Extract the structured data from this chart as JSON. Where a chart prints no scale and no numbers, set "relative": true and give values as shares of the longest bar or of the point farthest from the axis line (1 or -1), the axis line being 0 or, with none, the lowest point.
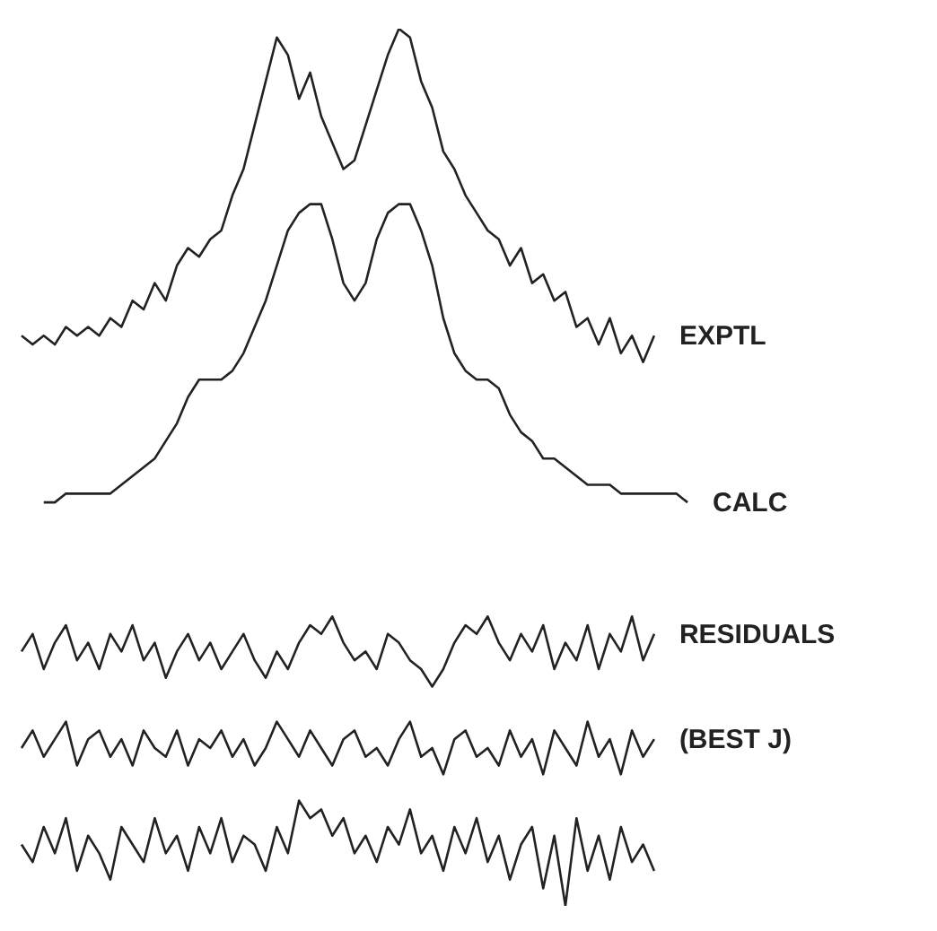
{
  "chart_data": {
    "type": "line",
    "relative": true,
    "grid": false,
    "legend": false,
    "marker": "none",
    "line_style": "solid",
    "tick_labels": false,
    "categories": [
      null,
      null,
      null,
      null,
      null,
      null,
      null,
      null,
      null,
      null,
      null,
      null,
      null,
      null,
      null,
      null,
      null,
      null,
      null,
      null,
      null,
      null,
      null,
      null,
      null,
      null,
      null,
      null,
      null,
      null,
      null,
      null,
      null,
      null,
      null,
      null,
      null,
      null,
      null,
      null,
      null,
      null,
      null,
      null,
      null,
      null,
      null,
      null,
      null,
      null,
      null,
      null,
      null,
      null,
      null,
      null,
      null,
      null,
      null,
      null,
      null
    ],
    "series": [
      {
        "name": "EXPTL",
        "color": "#222222",
        "values": [
          0.65,
          0.64,
          0.65,
          0.64,
          0.66,
          0.65,
          0.66,
          0.65,
          0.67,
          0.66,
          0.69,
          0.68,
          0.71,
          0.69,
          0.73,
          0.75,
          0.74,
          0.76,
          0.77,
          0.81,
          0.84,
          0.89,
          0.94,
          0.99,
          0.97,
          0.92,
          0.95,
          0.9,
          0.87,
          0.84,
          0.85,
          0.89,
          0.93,
          0.97,
          1.0,
          0.99,
          0.94,
          0.91,
          0.86,
          0.84,
          0.81,
          0.79,
          0.77,
          0.76,
          0.73,
          0.75,
          0.71,
          0.72,
          0.69,
          0.7,
          0.66,
          0.67,
          0.64,
          0.67,
          0.63,
          0.65,
          0.62,
          0.65,
          null,
          null,
          null
        ]
      },
      {
        "name": "CALC",
        "color": "#222222",
        "values": [
          null,
          null,
          0.46,
          0.46,
          0.47,
          0.47,
          0.47,
          0.47,
          0.47,
          0.48,
          0.49,
          0.5,
          0.51,
          0.53,
          0.55,
          0.58,
          0.6,
          0.6,
          0.6,
          0.61,
          0.63,
          0.66,
          0.69,
          0.73,
          0.77,
          0.79,
          0.8,
          0.8,
          0.76,
          0.71,
          0.69,
          0.71,
          0.76,
          0.79,
          0.8,
          0.8,
          0.77,
          0.73,
          0.67,
          0.63,
          0.61,
          0.6,
          0.6,
          0.59,
          0.56,
          0.54,
          0.53,
          0.51,
          0.51,
          0.5,
          0.49,
          0.48,
          0.48,
          0.48,
          0.47,
          0.47,
          0.47,
          0.47,
          0.47,
          0.47,
          0.46
        ]
      },
      {
        "name": "RESIDUALS",
        "color": "#222222",
        "values": [
          0.29,
          0.31,
          0.27,
          0.3,
          0.32,
          0.28,
          0.3,
          0.27,
          0.31,
          0.29,
          0.32,
          0.28,
          0.3,
          0.26,
          0.29,
          0.31,
          0.28,
          0.3,
          0.27,
          0.29,
          0.31,
          0.28,
          0.26,
          0.29,
          0.27,
          0.3,
          0.32,
          0.31,
          0.33,
          0.3,
          0.28,
          0.29,
          0.27,
          0.31,
          0.3,
          0.28,
          0.27,
          0.25,
          0.27,
          0.3,
          0.32,
          0.31,
          0.33,
          0.3,
          0.28,
          0.31,
          0.29,
          0.32,
          0.27,
          0.3,
          0.28,
          0.32,
          0.27,
          0.31,
          0.29,
          0.33,
          0.28,
          0.31,
          null,
          null,
          null
        ]
      },
      {
        "name": "(BEST J)",
        "color": "#222222",
        "values": [
          0.18,
          0.2,
          0.17,
          0.19,
          0.21,
          0.16,
          0.19,
          0.2,
          0.17,
          0.19,
          0.16,
          0.2,
          0.18,
          0.17,
          0.2,
          0.16,
          0.19,
          0.18,
          0.2,
          0.17,
          0.19,
          0.16,
          0.18,
          0.21,
          0.19,
          0.17,
          0.2,
          0.18,
          0.16,
          0.19,
          0.2,
          0.17,
          0.18,
          0.16,
          0.19,
          0.21,
          0.17,
          0.18,
          0.15,
          0.19,
          0.2,
          0.17,
          0.18,
          0.16,
          0.2,
          0.17,
          0.19,
          0.15,
          0.2,
          0.18,
          0.16,
          0.21,
          0.17,
          0.19,
          0.15,
          0.2,
          0.17,
          0.19,
          null,
          null,
          null
        ]
      },
      {
        "color": "#222222",
        "values": [
          0.07,
          0.05,
          0.09,
          0.06,
          0.1,
          0.04,
          0.08,
          0.06,
          0.03,
          0.09,
          0.07,
          0.05,
          0.1,
          0.06,
          0.08,
          0.04,
          0.09,
          0.06,
          0.1,
          0.05,
          0.08,
          0.07,
          0.04,
          0.09,
          0.06,
          0.12,
          0.1,
          0.11,
          0.08,
          0.1,
          0.06,
          0.08,
          0.05,
          0.09,
          0.07,
          0.11,
          0.06,
          0.08,
          0.04,
          0.09,
          0.06,
          0.1,
          0.05,
          0.08,
          0.03,
          0.07,
          0.09,
          0.02,
          0.08,
          0.0,
          0.1,
          0.04,
          0.08,
          0.03,
          0.09,
          0.05,
          0.07,
          0.04,
          null,
          null,
          null
        ]
      }
    ]
  }
}
